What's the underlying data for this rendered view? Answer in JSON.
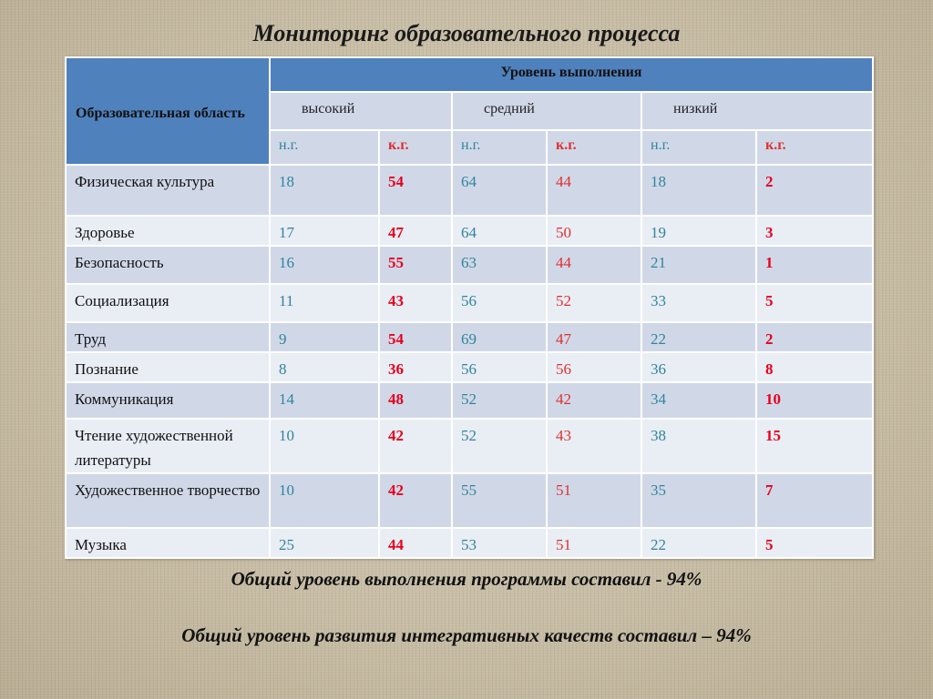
{
  "title": "Мониторинг образовательного процесса",
  "header": {
    "area_label": "Образовательная область",
    "level_label": "Уровень выполнения",
    "levels": [
      "высокий",
      "средний",
      "низкий"
    ],
    "cols": [
      "н.г.",
      "к.г.",
      "н.г.",
      "к.г.",
      "н.г.",
      "к.г."
    ]
  },
  "rows": [
    {
      "area": "Физическая культура",
      "v": [
        "18",
        "54",
        "64",
        "44",
        "18",
        "2"
      ]
    },
    {
      "area": "Здоровье",
      "v": [
        "17",
        "47",
        "64",
        "50",
        "19",
        "3"
      ]
    },
    {
      "area": "Безопасность",
      "v": [
        "16",
        "55",
        "63",
        "44",
        "21",
        "1"
      ]
    },
    {
      "area": "Социализация",
      "v": [
        "11",
        "43",
        "56",
        "52",
        "33",
        "5"
      ]
    },
    {
      "area": "Труд",
      "v": [
        "9",
        "54",
        "69",
        "47",
        "22",
        "2"
      ]
    },
    {
      "area": "Познание",
      "v": [
        "8",
        "36",
        "56",
        "56",
        "36",
        "8"
      ]
    },
    {
      "area": "Коммуникация",
      "v": [
        "14",
        "48",
        "52",
        "42",
        "34",
        "10"
      ]
    },
    {
      "area": "Чтение художественной литературы",
      "v": [
        "10",
        "42",
        "52",
        "43",
        "38",
        "15"
      ]
    },
    {
      "area": "Художественное творчество",
      "v": [
        "10",
        "42",
        "55",
        "51",
        "35",
        "7"
      ]
    },
    {
      "area": "Музыка",
      "v": [
        "25",
        "44",
        "53",
        "51",
        "22",
        "5"
      ]
    }
  ],
  "footer": {
    "line1": "Общий уровень выполнения программы составил  - 94%",
    "line2": "Общий уровень развития интегративных качеств составил – 94%"
  }
}
